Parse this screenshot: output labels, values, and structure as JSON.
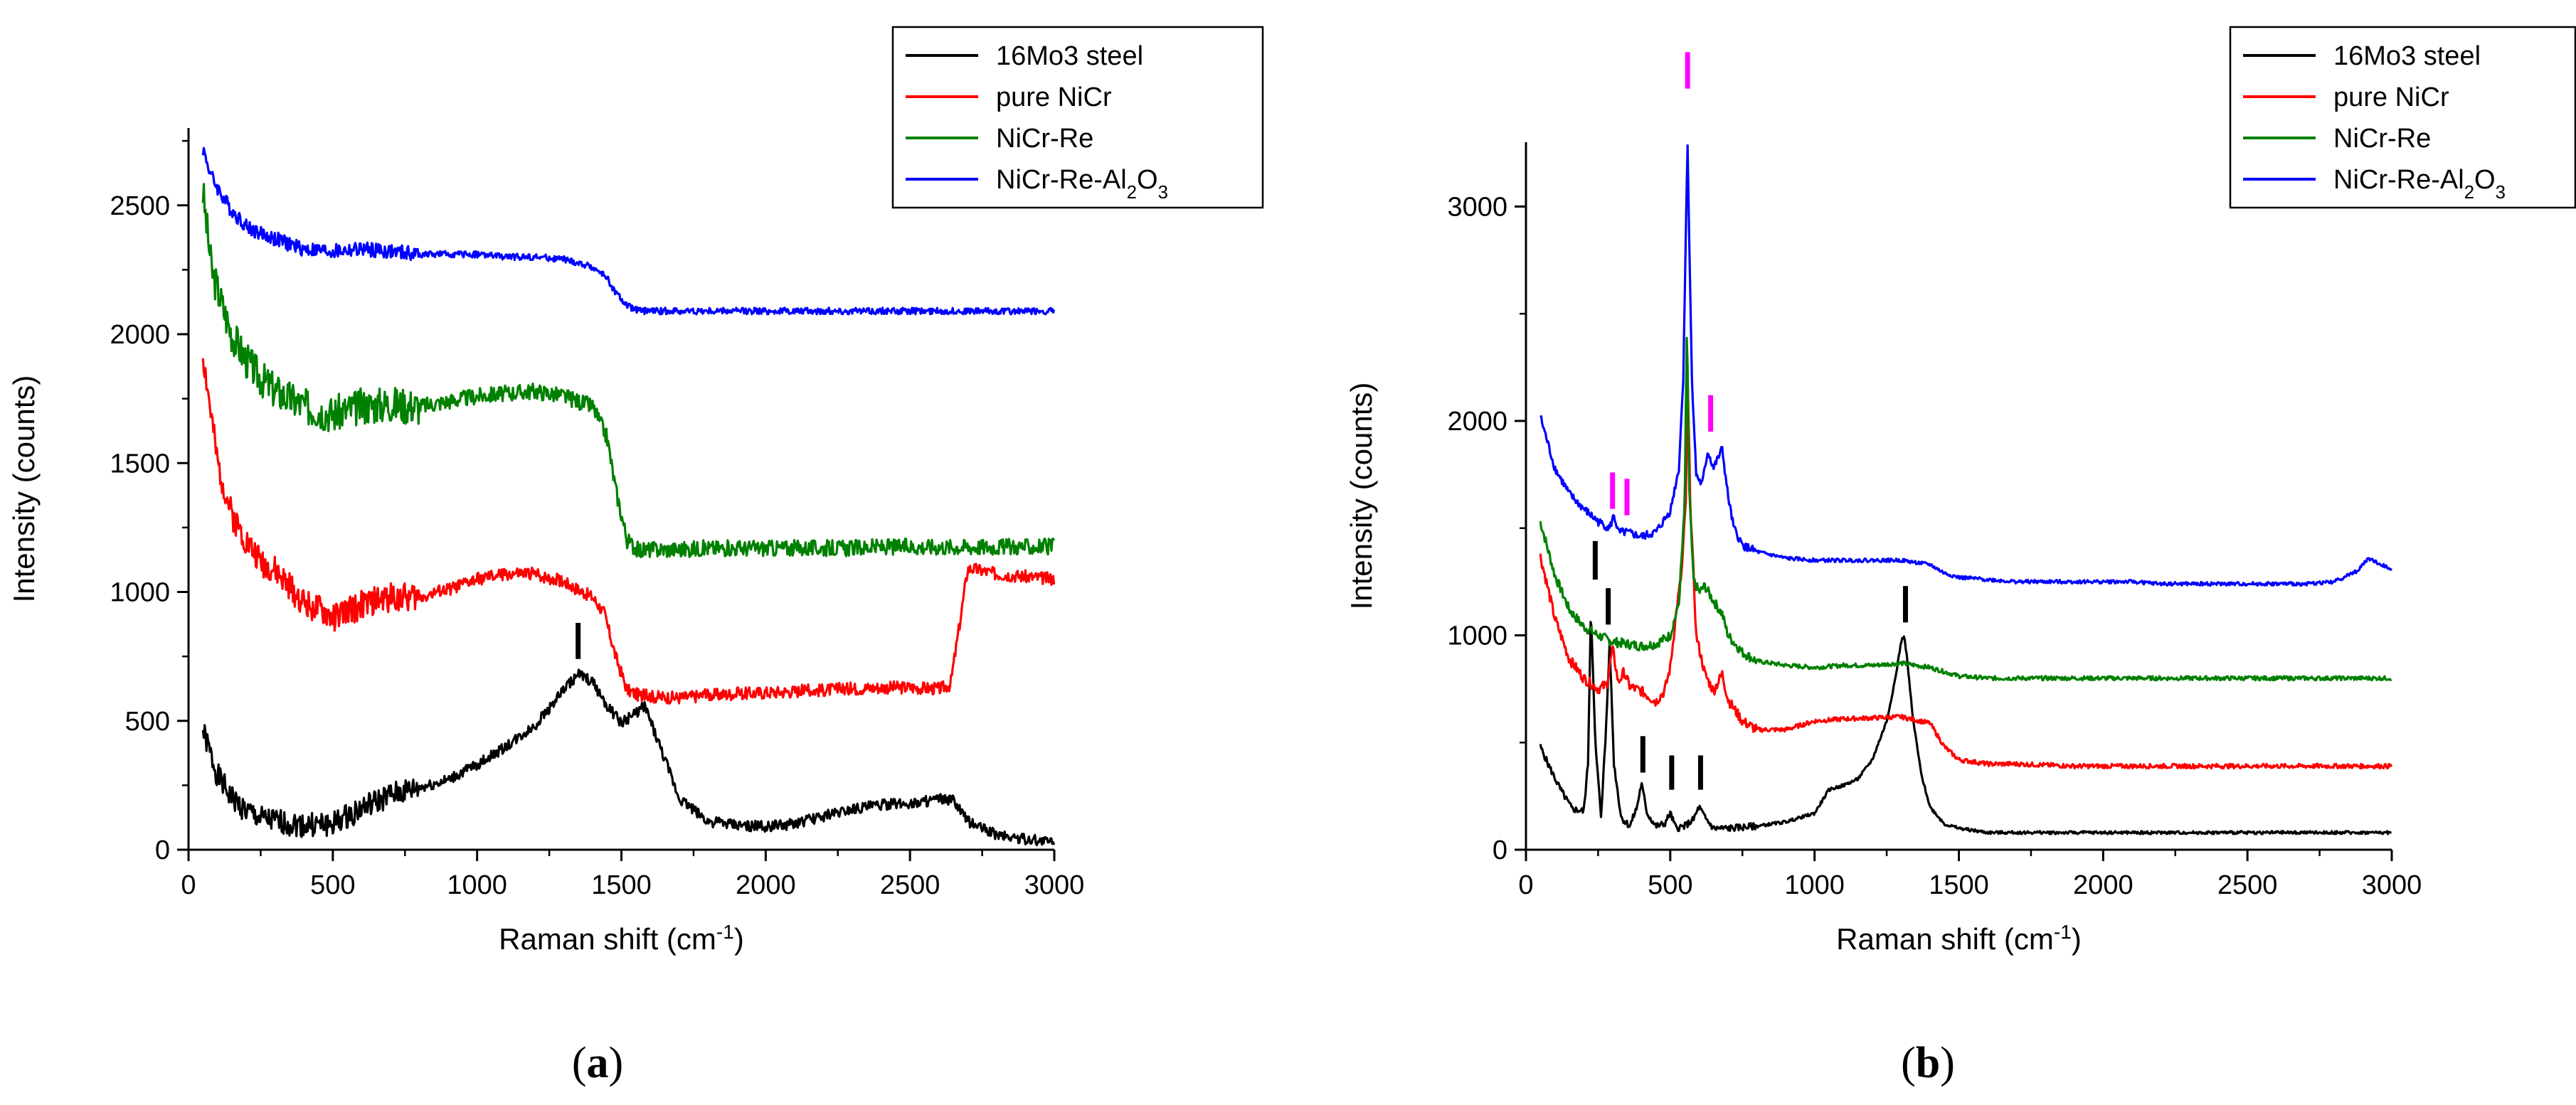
{
  "chart_data": [
    {
      "type": "line",
      "panel_label": "(a)",
      "panel_letter": "a",
      "xlabel": "Raman shift (cm",
      "xlabel_sup": "-1",
      "xlabel_end": ")",
      "ylabel": "Intensity (counts)",
      "xlim": [
        0,
        3000
      ],
      "ylim": [
        0,
        2800
      ],
      "xticks": [
        "0",
        "500",
        "1000",
        "1500",
        "2000",
        "2500",
        "3000"
      ],
      "yticks": [
        "0",
        "500",
        "1000",
        "1500",
        "2000",
        "2500"
      ],
      "legend_position": "top-right",
      "series": [
        {
          "name": "16Mo3 steel",
          "color": "#000000",
          "x": [
            50,
            100,
            150,
            200,
            250,
            300,
            400,
            500,
            600,
            700,
            800,
            900,
            1000,
            1100,
            1200,
            1300,
            1350,
            1400,
            1450,
            1500,
            1550,
            1580,
            1620,
            1700,
            1800,
            1900,
            2000,
            2100,
            2200,
            2300,
            2400,
            2500,
            2600,
            2650,
            2700,
            2800,
            2900,
            3000
          ],
          "y": [
            460,
            290,
            200,
            150,
            120,
            110,
            95,
            100,
            160,
            210,
            240,
            270,
            330,
            400,
            480,
            620,
            680,
            650,
            560,
            490,
            530,
            560,
            440,
            200,
            110,
            95,
            90,
            100,
            130,
            160,
            175,
            180,
            195,
            190,
            110,
            60,
            40,
            30
          ],
          "noise": 30,
          "seed": 1
        },
        {
          "name": "pure NiCr",
          "color": "#ff0000",
          "x": [
            50,
            100,
            150,
            200,
            250,
            300,
            400,
            500,
            600,
            700,
            800,
            900,
            1000,
            1100,
            1200,
            1300,
            1400,
            1440,
            1480,
            1520,
            1560,
            1600,
            1700,
            1800,
            1900,
            2000,
            2100,
            2200,
            2300,
            2400,
            2500,
            2600,
            2640,
            2670,
            2700,
            2720,
            2800,
            2900,
            3000
          ],
          "y": [
            1920,
            1500,
            1300,
            1200,
            1120,
            1080,
            960,
            900,
            950,
            980,
            980,
            1010,
            1050,
            1070,
            1070,
            1040,
            980,
            920,
            750,
            620,
            600,
            595,
            590,
            600,
            605,
            610,
            615,
            620,
            625,
            630,
            630,
            625,
            640,
            860,
            1090,
            1090,
            1070,
            1060,
            1050
          ],
          "noise": 35,
          "seed": 2
        },
        {
          "name": "NiCr-Re",
          "color": "#008000",
          "x": [
            50,
            80,
            120,
            150,
            200,
            250,
            300,
            400,
            500,
            600,
            700,
            800,
            900,
            1000,
            1100,
            1200,
            1300,
            1400,
            1450,
            1480,
            1520,
            1560,
            1600,
            1700,
            1800,
            1900,
            2000,
            2100,
            2200,
            2300,
            2400,
            2500,
            2600,
            2700,
            2800,
            2900,
            3000
          ],
          "y": [
            2550,
            2250,
            2100,
            2000,
            1900,
            1830,
            1780,
            1720,
            1690,
            1720,
            1730,
            1720,
            1740,
            1760,
            1770,
            1780,
            1760,
            1720,
            1600,
            1400,
            1200,
            1160,
            1165,
            1165,
            1170,
            1170,
            1170,
            1170,
            1170,
            1170,
            1175,
            1175,
            1175,
            1175,
            1175,
            1175,
            1175
          ],
          "noise": 45,
          "seed": 3
        },
        {
          "name": "NiCr-Re-Al2O3",
          "color": "#0000ff",
          "x": [
            50,
            80,
            120,
            150,
            200,
            250,
            300,
            400,
            500,
            600,
            700,
            800,
            900,
            1000,
            1100,
            1200,
            1300,
            1400,
            1450,
            1480,
            1520,
            1560,
            1600,
            1700,
            1800,
            1900,
            2000,
            2100,
            2200,
            2300,
            2400,
            2500,
            2600,
            2700,
            2800,
            2900,
            3000
          ],
          "y": [
            2720,
            2610,
            2530,
            2480,
            2420,
            2390,
            2370,
            2330,
            2320,
            2330,
            2320,
            2310,
            2310,
            2310,
            2300,
            2300,
            2290,
            2260,
            2220,
            2160,
            2110,
            2090,
            2090,
            2090,
            2090,
            2090,
            2090,
            2090,
            2090,
            2090,
            2090,
            2090,
            2090,
            2090,
            2090,
            2090,
            2090
          ],
          "noise": 18,
          "seed": 4
        }
      ],
      "markers": [
        {
          "x": 1350,
          "y1": 740,
          "y2": 880,
          "color": "#000000"
        }
      ]
    },
    {
      "type": "line",
      "panel_label": "(b)",
      "panel_letter": "b",
      "xlabel": "Raman shift (cm",
      "xlabel_sup": "-1",
      "xlabel_end": ")",
      "ylabel": "Intensity (counts)",
      "xlim": [
        0,
        3000
      ],
      "ylim": [
        0,
        3300
      ],
      "xticks": [
        "0",
        "500",
        "1000",
        "1500",
        "2000",
        "2500",
        "3000"
      ],
      "yticks": [
        "0",
        "1000",
        "2000",
        "3000"
      ],
      "legend_position": "top-right",
      "series": [
        {
          "name": "16Mo3 steel",
          "color": "#000000",
          "x": [
            50,
            80,
            120,
            160,
            200,
            215,
            225,
            240,
            260,
            275,
            290,
            305,
            330,
            360,
            385,
            400,
            420,
            450,
            480,
            500,
            520,
            550,
            580,
            600,
            620,
            650,
            700,
            800,
            900,
            1000,
            1050,
            1100,
            1150,
            1200,
            1250,
            1280,
            1300,
            1310,
            1320,
            1340,
            1370,
            1400,
            1450,
            1500,
            1600,
            1700,
            1800,
            1900,
            2000,
            2100,
            2200,
            2300,
            2400,
            2500,
            2600,
            2700,
            2800,
            2900,
            3000
          ],
          "y": [
            480,
            390,
            280,
            190,
            180,
            400,
            1140,
            500,
            160,
            500,
            960,
            400,
            150,
            110,
            200,
            310,
            170,
            110,
            120,
            170,
            100,
            110,
            140,
            200,
            150,
            100,
            100,
            110,
            130,
            170,
            280,
            300,
            330,
            420,
            600,
            800,
            970,
            1000,
            900,
            620,
            350,
            200,
            120,
            100,
            80,
            80,
            80,
            80,
            80,
            80,
            80,
            80,
            80,
            80,
            80,
            80,
            80,
            80,
            80
          ],
          "noise": 10,
          "seed": 5
        },
        {
          "name": "pure NiCr",
          "color": "#ff0000",
          "x": [
            50,
            100,
            150,
            200,
            250,
            280,
            300,
            320,
            340,
            360,
            400,
            450,
            480,
            500,
            520,
            540,
            555,
            560,
            570,
            590,
            620,
            650,
            680,
            700,
            750,
            800,
            900,
            1000,
            1100,
            1200,
            1300,
            1400,
            1450,
            1500,
            1600,
            1700,
            1800,
            1900,
            2000,
            2100,
            2200,
            2300,
            2400,
            2500,
            2600,
            2700,
            2800,
            2900,
            3000
          ],
          "y": [
            1370,
            1080,
            890,
            800,
            750,
            770,
            940,
            780,
            830,
            760,
            740,
            690,
            740,
            850,
            1100,
            1300,
            1650,
            2200,
            1600,
            1000,
            820,
            740,
            820,
            700,
            600,
            560,
            560,
            600,
            610,
            615,
            620,
            590,
            480,
            420,
            400,
            400,
            395,
            390,
            390,
            390,
            390,
            390,
            390,
            390,
            390,
            390,
            390,
            390,
            390
          ],
          "noise": 15,
          "seed": 6
        },
        {
          "name": "NiCr-Re",
          "color": "#008000",
          "x": [
            50,
            100,
            150,
            200,
            250,
            300,
            350,
            400,
            450,
            500,
            530,
            550,
            558,
            565,
            580,
            600,
            620,
            650,
            680,
            700,
            750,
            800,
            900,
            1000,
            1100,
            1200,
            1300,
            1400,
            1450,
            1500,
            1600,
            1700,
            1800,
            1900,
            2000,
            2100,
            2200,
            2300,
            2400,
            2500,
            2600,
            2700,
            2800,
            2900,
            3000
          ],
          "y": [
            1530,
            1280,
            1120,
            1040,
            1000,
            970,
            960,
            950,
            960,
            1000,
            1150,
            1600,
            2480,
            1700,
            1260,
            1200,
            1230,
            1160,
            1100,
            1000,
            920,
            880,
            860,
            850,
            860,
            860,
            870,
            850,
            830,
            810,
            800,
            800,
            800,
            800,
            800,
            800,
            800,
            800,
            800,
            800,
            800,
            800,
            800,
            800,
            800
          ],
          "noise": 14,
          "seed": 7
        },
        {
          "name": "NiCr-Re-Al2O3",
          "color": "#0000ff",
          "x": [
            50,
            100,
            150,
            200,
            250,
            290,
            305,
            320,
            350,
            400,
            450,
            500,
            530,
            545,
            555,
            560,
            565,
            575,
            590,
            610,
            630,
            650,
            680,
            700,
            720,
            750,
            800,
            900,
            1000,
            1100,
            1200,
            1300,
            1400,
            1450,
            1500,
            1600,
            1700,
            1800,
            1900,
            2000,
            2100,
            2200,
            2300,
            2400,
            2500,
            2600,
            2700,
            2800,
            2880,
            2920,
            2960,
            3000
          ],
          "y": [
            2020,
            1780,
            1660,
            1590,
            1530,
            1500,
            1560,
            1480,
            1480,
            1460,
            1480,
            1580,
            1780,
            2200,
            2950,
            3300,
            2900,
            2200,
            1750,
            1700,
            1860,
            1780,
            1870,
            1650,
            1500,
            1420,
            1390,
            1360,
            1350,
            1350,
            1350,
            1350,
            1330,
            1290,
            1270,
            1260,
            1250,
            1250,
            1250,
            1250,
            1250,
            1240,
            1240,
            1240,
            1240,
            1240,
            1240,
            1250,
            1300,
            1360,
            1330,
            1310
          ],
          "noise": 12,
          "seed": 8
        }
      ],
      "markers": [
        {
          "x": 240,
          "y1": 1260,
          "y2": 1440,
          "color": "#000000"
        },
        {
          "x": 285,
          "y1": 1050,
          "y2": 1220,
          "color": "#000000"
        },
        {
          "x": 405,
          "y1": 360,
          "y2": 530,
          "color": "#000000"
        },
        {
          "x": 505,
          "y1": 280,
          "y2": 440,
          "color": "#000000"
        },
        {
          "x": 605,
          "y1": 280,
          "y2": 440,
          "color": "#000000"
        },
        {
          "x": 1315,
          "y1": 1060,
          "y2": 1230,
          "color": "#000000"
        },
        {
          "x": 300,
          "y1": 1590,
          "y2": 1760,
          "color": "#ff00ff"
        },
        {
          "x": 350,
          "y1": 1560,
          "y2": 1730,
          "color": "#ff00ff"
        },
        {
          "x": 560,
          "y1": 3550,
          "y2": 3720,
          "color": "#ff00ff"
        },
        {
          "x": 640,
          "y1": 1950,
          "y2": 2120,
          "color": "#ff00ff"
        }
      ]
    }
  ]
}
